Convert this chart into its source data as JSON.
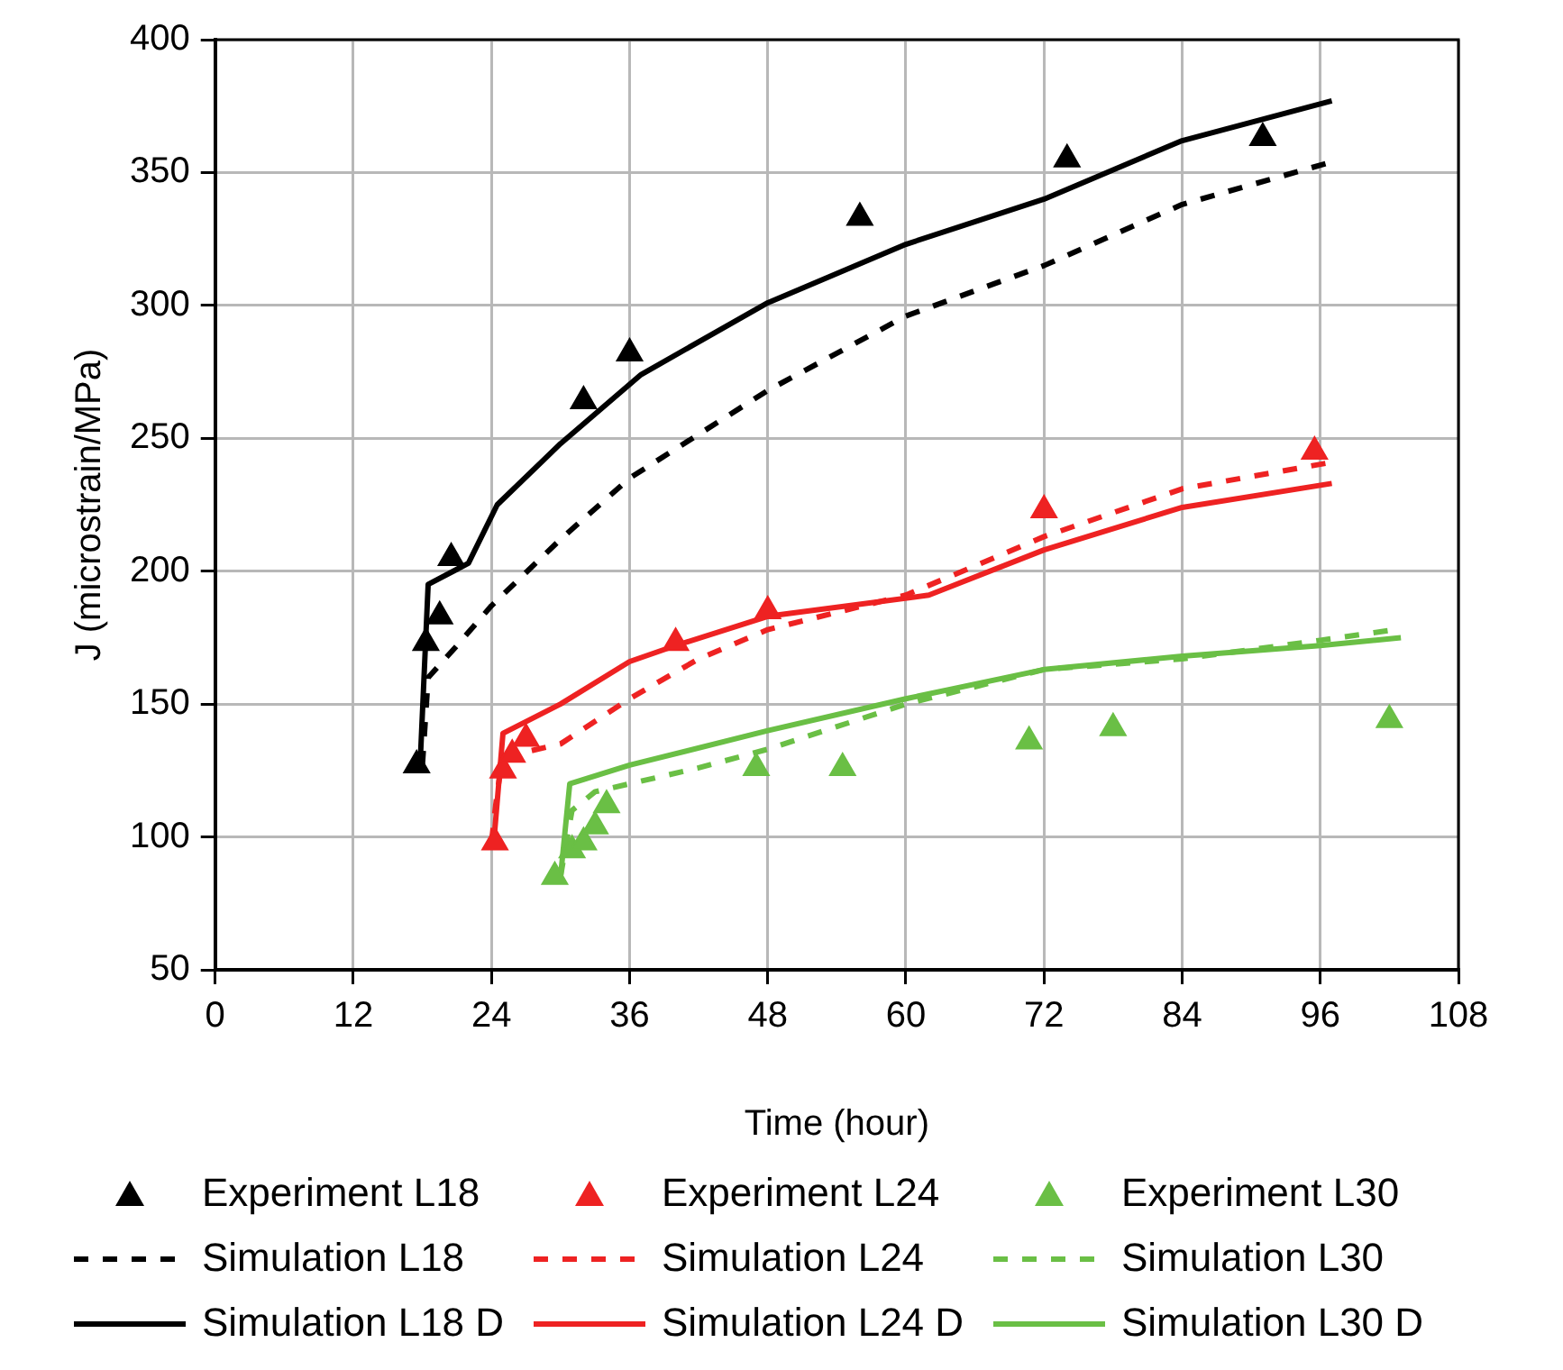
{
  "chart_data": {
    "type": "scatter",
    "xlabel": "Time (hour)",
    "ylabel": "J (microstrain/MPa)",
    "xlim": [
      0,
      108
    ],
    "xticks": [
      0,
      12,
      24,
      36,
      48,
      60,
      72,
      84,
      96,
      108
    ],
    "ylim": [
      50,
      400
    ],
    "yticks": [
      50,
      100,
      150,
      200,
      250,
      300,
      350,
      400
    ],
    "grid": true,
    "legend": "bottom",
    "series": [
      {
        "name": "Experiment L18",
        "marker": "triangle",
        "color": "#000000",
        "x": [
          17.5,
          18.3,
          19.5,
          20.5,
          32,
          36,
          56,
          74,
          91
        ],
        "values": [
          127,
          173,
          183,
          205,
          264,
          282,
          333,
          355,
          363
        ]
      },
      {
        "name": "Experiment L24",
        "marker": "triangle",
        "color": "#ee2222",
        "x": [
          24.3,
          25,
          25.8,
          27,
          40,
          48,
          72,
          95.5
        ],
        "values": [
          98,
          125,
          131,
          137,
          173,
          185,
          223,
          245
        ]
      },
      {
        "name": "Experiment L30",
        "marker": "triangle",
        "color": "#6abf45",
        "x": [
          29.5,
          31,
          32,
          33,
          34,
          47,
          54.5,
          70.7,
          78,
          102
        ],
        "values": [
          85,
          95,
          98,
          104,
          112,
          126,
          126,
          136,
          141,
          144
        ]
      },
      {
        "name": "Simulation L18",
        "type": "line",
        "line_style": "dashed",
        "marker": "none",
        "color": "#000000",
        "x": [
          18,
          18.5,
          21,
          24,
          30,
          36,
          48,
          60,
          72,
          84,
          97
        ],
        "values": [
          127,
          160,
          172,
          187,
          212,
          235,
          268,
          296,
          315,
          338,
          354
        ]
      },
      {
        "name": "Simulation L24",
        "type": "line",
        "line_style": "dashed",
        "marker": "none",
        "color": "#ee2222",
        "x": [
          24,
          24.5,
          25,
          30,
          36,
          42,
          48,
          60,
          72,
          84,
          97
        ],
        "values": [
          98,
          117,
          130,
          135,
          152,
          167,
          178,
          191,
          213,
          231,
          241
        ]
      },
      {
        "name": "Simulation L30",
        "type": "line",
        "line_style": "dashed",
        "marker": "none",
        "color": "#6abf45",
        "x": [
          30,
          30.5,
          31,
          33,
          42,
          48,
          60,
          72,
          84,
          96,
          102.5
        ],
        "values": [
          85,
          98,
          110,
          117,
          126,
          133,
          150,
          163,
          167,
          174,
          178
        ]
      },
      {
        "name": "Simulation L18 D",
        "type": "line",
        "line_style": "solid",
        "marker": "none",
        "color": "#000000",
        "x": [
          17.8,
          18.5,
          22,
          24.5,
          30,
          37,
          48,
          60,
          72,
          84,
          97
        ],
        "values": [
          127,
          195,
          203,
          225,
          248,
          274,
          301,
          323,
          340,
          362,
          377
        ]
      },
      {
        "name": "Simulation L24 D",
        "type": "line",
        "line_style": "solid",
        "marker": "none",
        "color": "#ee2222",
        "x": [
          24.2,
          25,
          30,
          36,
          40,
          48,
          62,
          72,
          84,
          97
        ],
        "values": [
          98,
          139,
          150,
          166,
          172,
          183,
          191,
          208,
          224,
          233
        ]
      },
      {
        "name": "Simulation L30 D",
        "type": "line",
        "line_style": "solid",
        "marker": "none",
        "color": "#6abf45",
        "x": [
          30,
          30.8,
          36,
          48,
          60,
          72,
          84,
          96,
          103
        ],
        "values": [
          85,
          120,
          127,
          140,
          152,
          163,
          168,
          172,
          175
        ]
      }
    ]
  }
}
